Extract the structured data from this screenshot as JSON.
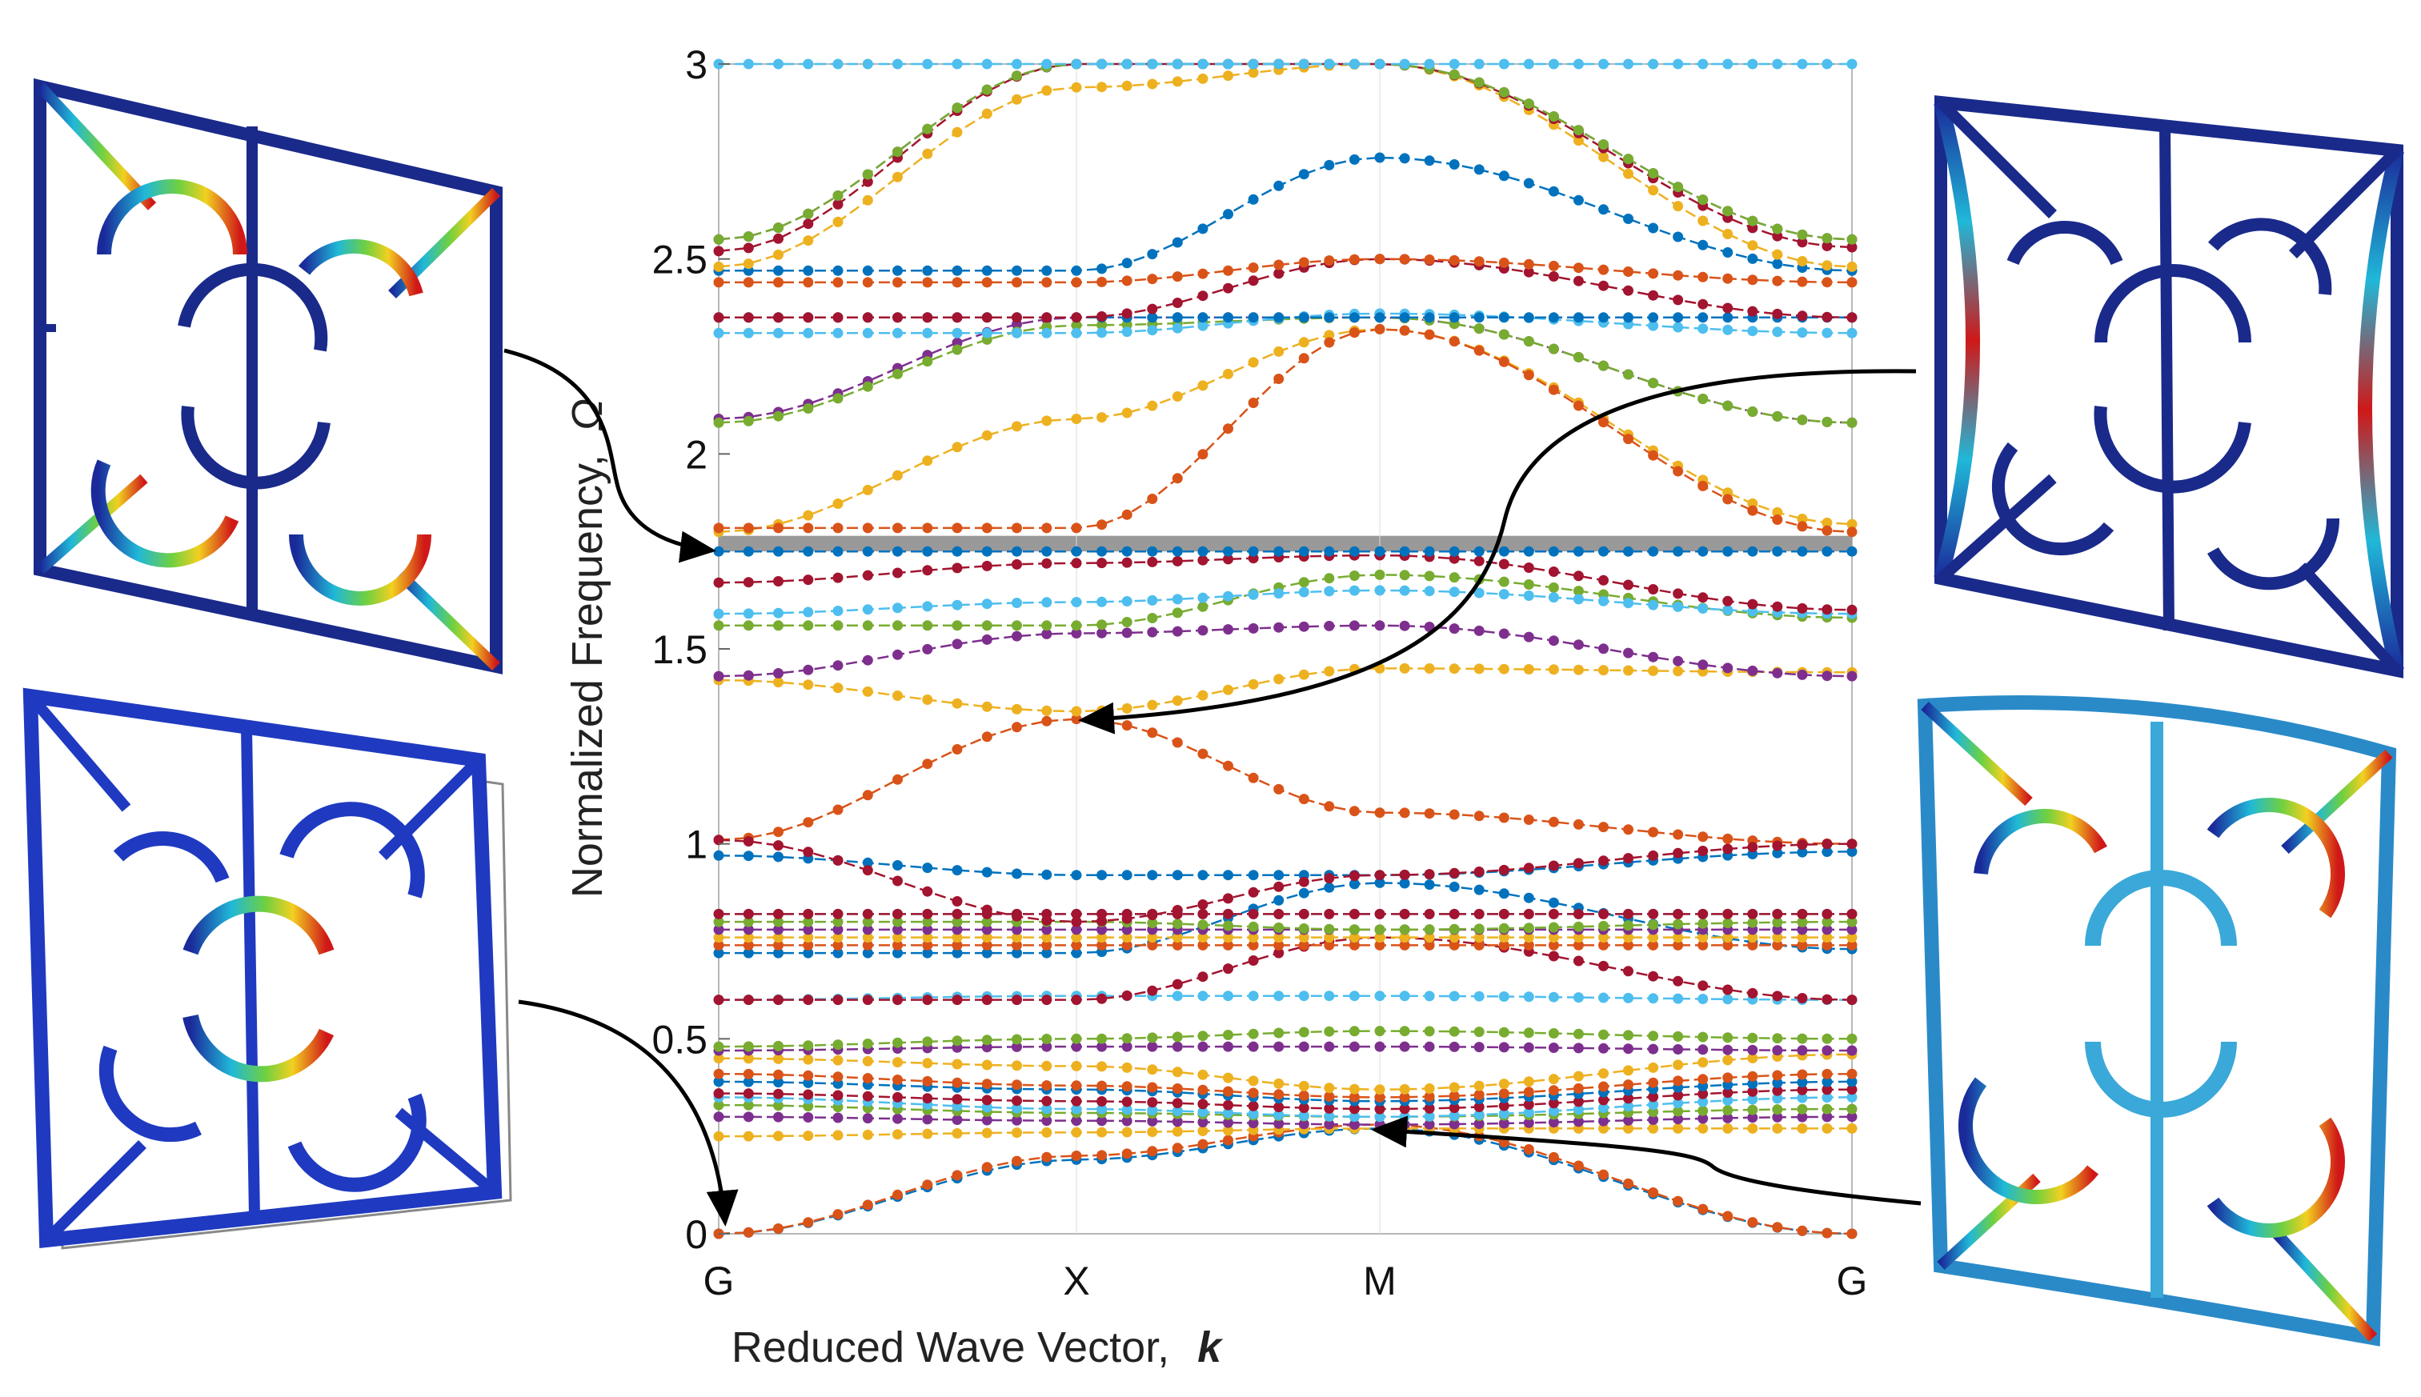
{
  "chart_data": {
    "type": "line",
    "xlabel": "Reduced Wave Vector,",
    "xlabel_symbol": "k",
    "ylabel": "Normalized Frequency,",
    "ylabel_symbol": "Ω",
    "ylim": [
      0,
      3
    ],
    "yticks": [
      {
        "value": 0,
        "label": "0"
      },
      {
        "value": 0.5,
        "label": "0.5"
      },
      {
        "value": 1,
        "label": "1"
      },
      {
        "value": 1.5,
        "label": "1.5"
      },
      {
        "value": 2,
        "label": "2"
      },
      {
        "value": 2.5,
        "label": "2.5"
      },
      {
        "value": 3,
        "label": "3"
      }
    ],
    "xticks": [
      {
        "pos": 0,
        "label": "G"
      },
      {
        "pos": 1,
        "label": "X"
      },
      {
        "pos": 2,
        "label": "M"
      },
      {
        "pos": 3,
        "label": "G"
      }
    ],
    "band_gap": [
      1.75,
      1.79
    ],
    "colors": {
      "blue": "#0072BD",
      "orange": "#D95319",
      "yellow": "#EDB120",
      "purple": "#7E2F8E",
      "green": "#77AC30",
      "cyan": "#4DBEEE",
      "red": "#A2142F",
      "gap": "#999999",
      "frame": "#13237a"
    },
    "series": [
      {
        "color": "blue",
        "g": 0,
        "x": 0.19,
        "m": 0.27,
        "g2": 0
      },
      {
        "color": "orange",
        "g": 0,
        "x": 0.2,
        "m": 0.28,
        "g2": 0
      },
      {
        "color": "yellow",
        "g": 0.25,
        "x": 0.26,
        "m": 0.27,
        "g2": 0.27
      },
      {
        "color": "purple",
        "g": 0.3,
        "x": 0.29,
        "m": 0.28,
        "g2": 0.3
      },
      {
        "color": "green",
        "g": 0.33,
        "x": 0.31,
        "m": 0.3,
        "g2": 0.32
      },
      {
        "color": "cyan",
        "g": 0.35,
        "x": 0.32,
        "m": 0.3,
        "g2": 0.35
      },
      {
        "color": "red",
        "g": 0.36,
        "x": 0.34,
        "m": 0.32,
        "g2": 0.37
      },
      {
        "color": "blue",
        "g": 0.39,
        "x": 0.37,
        "m": 0.34,
        "g2": 0.39
      },
      {
        "color": "orange",
        "g": 0.41,
        "x": 0.38,
        "m": 0.35,
        "g2": 0.41
      },
      {
        "color": "yellow",
        "g": 0.45,
        "x": 0.43,
        "m": 0.37,
        "g2": 0.46
      },
      {
        "color": "purple",
        "g": 0.47,
        "x": 0.48,
        "m": 0.48,
        "g2": 0.47
      },
      {
        "color": "green",
        "g": 0.48,
        "x": 0.5,
        "m": 0.52,
        "g2": 0.5
      },
      {
        "color": "cyan",
        "g": 0.6,
        "x": 0.61,
        "m": 0.61,
        "g2": 0.6
      },
      {
        "color": "red",
        "g": 0.6,
        "x": 0.6,
        "m": 0.76,
        "g2": 0.6
      },
      {
        "color": "blue",
        "g": 0.72,
        "x": 0.72,
        "m": 0.9,
        "g2": 0.73
      },
      {
        "color": "orange",
        "g": 0.74,
        "x": 0.74,
        "m": 0.74,
        "g2": 0.74
      },
      {
        "color": "yellow",
        "g": 0.76,
        "x": 0.76,
        "m": 0.76,
        "g2": 0.76
      },
      {
        "color": "purple",
        "g": 0.78,
        "x": 0.78,
        "m": 0.78,
        "g2": 0.78
      },
      {
        "color": "green",
        "g": 0.8,
        "x": 0.8,
        "m": 0.78,
        "g2": 0.8
      },
      {
        "color": "cyan",
        "g": 0.82,
        "x": 0.82,
        "m": 0.82,
        "g2": 0.82
      },
      {
        "color": "red",
        "g": 0.82,
        "x": 0.82,
        "m": 0.82,
        "g2": 0.82
      },
      {
        "color": "blue",
        "g": 0.97,
        "x": 0.92,
        "m": 0.92,
        "g2": 0.98
      },
      {
        "color": "orange",
        "g": 1.01,
        "x": 1.32,
        "m": 1.08,
        "g2": 1.0
      },
      {
        "color": "red",
        "g": 1.01,
        "x": 0.8,
        "m": 0.92,
        "g2": 1.0
      },
      {
        "color": "yellow",
        "g": 1.42,
        "x": 1.34,
        "m": 1.45,
        "g2": 1.44
      },
      {
        "color": "purple",
        "g": 1.43,
        "x": 1.54,
        "m": 1.56,
        "g2": 1.43
      },
      {
        "color": "green",
        "g": 1.56,
        "x": 1.56,
        "m": 1.69,
        "g2": 1.58
      },
      {
        "color": "cyan",
        "g": 1.59,
        "x": 1.62,
        "m": 1.65,
        "g2": 1.59
      },
      {
        "color": "red",
        "g": 1.67,
        "x": 1.72,
        "m": 1.74,
        "g2": 1.6
      },
      {
        "color": "blue",
        "g": 1.75,
        "x": 1.75,
        "m": 1.75,
        "g2": 1.75
      },
      {
        "color": "yellow",
        "g": 1.8,
        "x": 2.09,
        "m": 2.32,
        "g2": 1.82
      },
      {
        "color": "orange",
        "g": 1.81,
        "x": 1.81,
        "m": 2.32,
        "g2": 1.8
      },
      {
        "color": "purple",
        "g": 2.09,
        "x": 2.35,
        "m": 2.35,
        "g2": 2.08
      },
      {
        "color": "green",
        "g": 2.08,
        "x": 2.33,
        "m": 2.35,
        "g2": 2.08
      },
      {
        "color": "cyan",
        "g": 2.31,
        "x": 2.31,
        "m": 2.36,
        "g2": 2.31
      },
      {
        "color": "blue",
        "g": 2.35,
        "x": 2.35,
        "m": 2.35,
        "g2": 2.35
      },
      {
        "color": "red",
        "g": 2.35,
        "x": 2.35,
        "m": 2.5,
        "g2": 2.35
      },
      {
        "color": "orange",
        "g": 2.44,
        "x": 2.44,
        "m": 2.5,
        "g2": 2.44
      },
      {
        "color": "blue",
        "g": 2.47,
        "x": 2.47,
        "m": 2.76,
        "g2": 2.47
      },
      {
        "color": "yellow",
        "g": 2.48,
        "x": 2.94,
        "m": 3.0,
        "g2": 2.48
      },
      {
        "color": "red",
        "g": 2.52,
        "x": 3.0,
        "m": 3.0,
        "g2": 2.53
      },
      {
        "color": "purple",
        "g": 2.55,
        "x": 3.0,
        "m": 3.0,
        "g2": 2.55
      },
      {
        "color": "green",
        "g": 2.55,
        "x": 3.0,
        "m": 3.0,
        "g2": 2.55
      },
      {
        "color": "cyan",
        "g": 3.0,
        "x": 3.0,
        "m": 3.0,
        "g2": 3.0
      }
    ]
  }
}
